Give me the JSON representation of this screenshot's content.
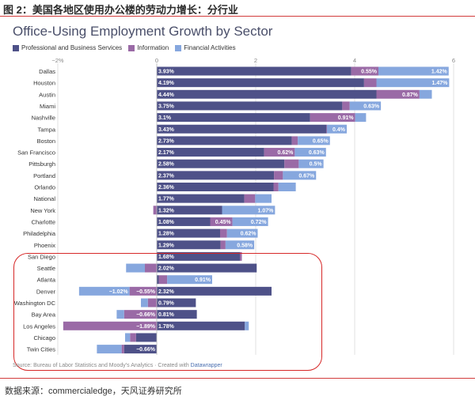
{
  "figure_title": "图 2：美国各地区使用办公楼的劳动力增长：分行业",
  "footer_source": "数据来源：commercialedge，天风证券研究所",
  "colors": {
    "professional": "#4e5188",
    "information": "#9a6aa6",
    "financial": "#86a7de",
    "accent_red": "#d62828"
  },
  "chart_data": {
    "type": "bar",
    "stacked": true,
    "orientation": "horizontal",
    "title": "Office-Using Employment Growth by Sector",
    "xlim": [
      -2,
      6
    ],
    "ticks": [
      -2,
      0,
      2,
      4,
      6
    ],
    "tick_labels": [
      "−2%",
      "0",
      "2",
      "4",
      "6"
    ],
    "grid": true,
    "legend": "top-left",
    "source_prefix": "Source: Bureau of Labor Statistics and Moody's Analytics · Created with ",
    "source_link": "Datawrapper",
    "series": [
      {
        "name": "Professional and Business Services",
        "color": "#4e5188"
      },
      {
        "name": "Information",
        "color": "#9a6aa6"
      },
      {
        "name": "Financial Activities",
        "color": "#86a7de"
      }
    ],
    "rows": [
      {
        "city": "Dallas",
        "values": [
          3.93,
          0.55,
          1.42
        ],
        "labels": [
          "3.93%",
          "0.55%",
          "1.42%"
        ]
      },
      {
        "city": "Houston",
        "values": [
          4.19,
          0.25,
          1.47
        ],
        "labels": [
          "4.19%",
          "",
          "1.47%"
        ]
      },
      {
        "city": "Austin",
        "values": [
          4.44,
          0.87,
          0.25
        ],
        "labels": [
          "4.44%",
          "0.87%",
          ""
        ]
      },
      {
        "city": "Miami",
        "values": [
          3.75,
          0.15,
          0.63
        ],
        "labels": [
          "3.75%",
          "",
          "0.63%"
        ]
      },
      {
        "city": "Nashville",
        "values": [
          3.1,
          0.91,
          0.22
        ],
        "labels": [
          "3.1%",
          "0.91%",
          ""
        ]
      },
      {
        "city": "Tampa",
        "values": [
          3.43,
          0.01,
          0.4
        ],
        "labels": [
          "3.43%",
          "",
          "0.4%"
        ]
      },
      {
        "city": "Boston",
        "values": [
          2.73,
          0.12,
          0.65
        ],
        "labels": [
          "2.73%",
          "",
          "0.65%"
        ]
      },
      {
        "city": "San Francisco",
        "values": [
          2.17,
          0.62,
          0.63
        ],
        "labels": [
          "2.17%",
          "0.62%",
          "0.63%"
        ]
      },
      {
        "city": "Pittsburgh",
        "values": [
          2.58,
          0.29,
          0.5
        ],
        "labels": [
          "2.58%",
          "",
          "0.5%"
        ]
      },
      {
        "city": "Portland",
        "values": [
          2.37,
          0.18,
          0.67
        ],
        "labels": [
          "2.37%",
          "",
          "0.67%"
        ]
      },
      {
        "city": "Orlando",
        "values": [
          2.36,
          0.1,
          0.35
        ],
        "labels": [
          "2.36%",
          "",
          ""
        ]
      },
      {
        "city": "National",
        "values": [
          1.77,
          0.22,
          0.33
        ],
        "labels": [
          "1.77%",
          "",
          ""
        ]
      },
      {
        "city": "New York",
        "values": [
          1.32,
          -0.07,
          1.07
        ],
        "labels": [
          "1.32%",
          "",
          "1.07%"
        ]
      },
      {
        "city": "Charlotte",
        "values": [
          1.08,
          0.45,
          0.72
        ],
        "labels": [
          "1.08%",
          "0.45%",
          "0.72%"
        ]
      },
      {
        "city": "Philadelphia",
        "values": [
          1.28,
          0.14,
          0.62
        ],
        "labels": [
          "1.28%",
          "",
          "0.62%"
        ]
      },
      {
        "city": "Phoenix",
        "values": [
          1.29,
          0.1,
          0.58
        ],
        "labels": [
          "1.29%",
          "",
          "0.58%"
        ]
      },
      {
        "city": "San Diego",
        "values": [
          1.68,
          0.04,
          0.0
        ],
        "labels": [
          "1.68%",
          "",
          ""
        ]
      },
      {
        "city": "Seattle",
        "values": [
          2.02,
          -0.24,
          -0.38
        ],
        "labels": [
          "2.02%",
          "",
          ""
        ]
      },
      {
        "city": "Atlanta",
        "values": [
          0.04,
          0.17,
          0.91
        ],
        "labels": [
          "",
          "",
          "0.91%"
        ]
      },
      {
        "city": "Denver",
        "values": [
          2.32,
          -0.55,
          -1.02
        ],
        "labels": [
          "2.32%",
          "−0.55%",
          "−1.02%"
        ]
      },
      {
        "city": "Washington DC",
        "values": [
          0.79,
          -0.18,
          -0.14
        ],
        "labels": [
          "0.79%",
          "",
          ""
        ]
      },
      {
        "city": "Bay Area",
        "values": [
          0.81,
          -0.66,
          -0.15
        ],
        "labels": [
          "0.81%",
          "−0.66%",
          ""
        ]
      },
      {
        "city": "Los Angeles",
        "values": [
          1.78,
          -1.89,
          0.08
        ],
        "labels": [
          "1.78%",
          "−1.89%",
          ""
        ]
      },
      {
        "city": "Chicago",
        "values": [
          -0.42,
          -0.12,
          -0.1
        ],
        "labels": [
          "",
          "",
          ""
        ]
      },
      {
        "city": "Twin Cities",
        "values": [
          -0.66,
          -0.05,
          -0.5
        ],
        "labels": [
          "−0.66%",
          "",
          ""
        ]
      }
    ]
  }
}
